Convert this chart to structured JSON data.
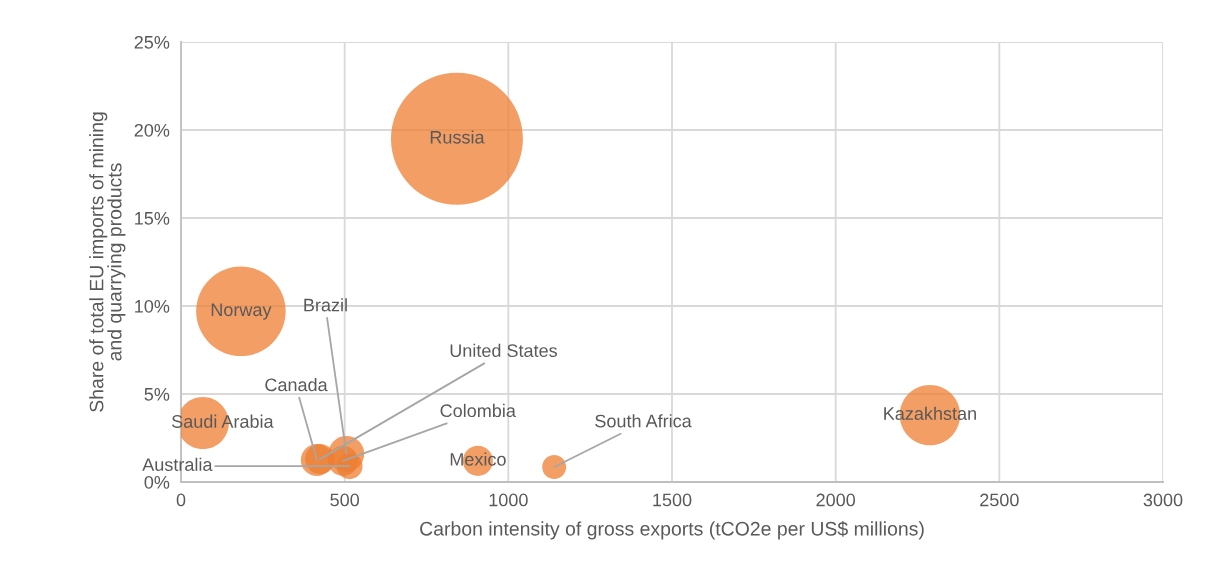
{
  "chart_data": {
    "type": "bubble",
    "xlabel": "Carbon intensity of gross exports (tCO2e per US$ millions)",
    "ylabel": "Share of total EU imports of mining\nand quarrying products",
    "series": [
      {
        "color": "#ed7d31",
        "x": [
          843,
          183,
          67,
          2288,
          907,
          1140,
          415,
          425,
          505,
          495,
          515
        ],
        "values": [
          19.5,
          9.7,
          3.35,
          3.8,
          1.2,
          0.85,
          1.25,
          1.3,
          1.6,
          1.2,
          0.9
        ],
        "sizes": [
          1,
          0.46,
          0.155,
          0.21,
          0.052,
          0.033,
          0.059,
          0.052,
          0.074,
          0.052,
          0.039
        ]
      }
    ],
    "annotations": [
      {
        "text": "Russia",
        "x": 843,
        "y": 19.5
      },
      {
        "text": "Norway",
        "x": 183,
        "y": 9.7
      },
      {
        "text": "Saudi Arabia",
        "x": 67,
        "y": 3.35
      },
      {
        "text": "Kazakhstan",
        "x": 2288,
        "y": 3.8
      },
      {
        "text": "Mexico",
        "x": 907,
        "y": 1.2
      },
      {
        "text": "South Africa",
        "x": 1140,
        "y": 0.85
      },
      {
        "text": "Canada",
        "x": 415,
        "y": 1.25
      },
      {
        "text": "United States",
        "x": 425,
        "y": 1.3
      },
      {
        "text": "Brazil",
        "x": 505,
        "y": 1.6
      },
      {
        "text": "Colombia",
        "x": 495,
        "y": 1.2
      },
      {
        "text": "Australia",
        "x": 515,
        "y": 0.9
      }
    ],
    "xlim": [
      0,
      3000
    ],
    "xticks": [
      0,
      500,
      1000,
      1500,
      2000,
      2500,
      3000
    ],
    "ylim": [
      0,
      25
    ],
    "yticks": [
      {
        "value": 0,
        "label": "0%"
      },
      {
        "value": 5,
        "label": "5%"
      },
      {
        "value": 10,
        "label": "10%"
      },
      {
        "value": 15,
        "label": "15%"
      },
      {
        "value": 20,
        "label": "20%"
      },
      {
        "value": 25,
        "label": "25%"
      }
    ],
    "grid": true,
    "legend": false
  }
}
